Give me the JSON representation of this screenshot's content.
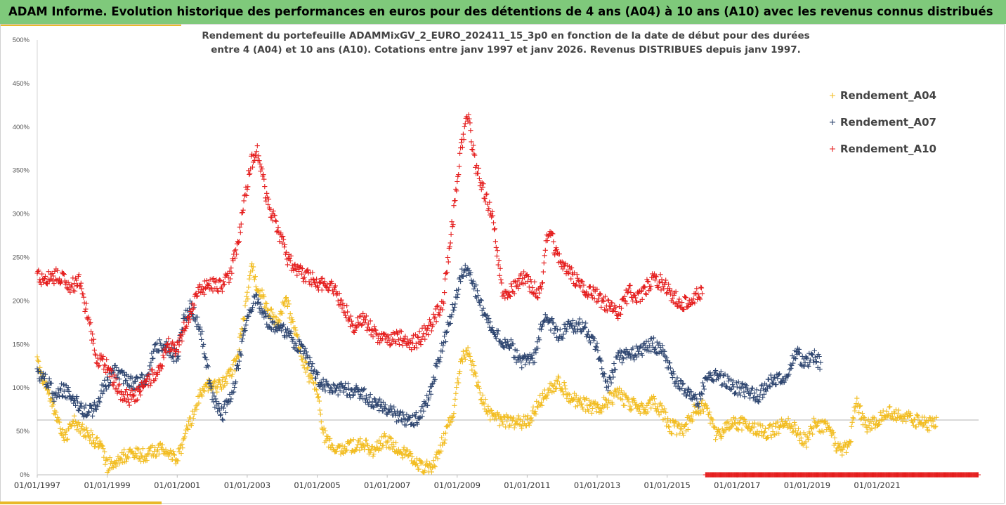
{
  "header": {
    "title": "ADAM Informe. Evolution historique des performances en euros pour des détentions de 4 ans (A04) à 10 ans (A10) avec les revenus connus distribués"
  },
  "colors": {
    "a04": "#f2bd22",
    "a07": "#2f4670",
    "a10": "#e51f1f",
    "refline": "#9a9a9a"
  },
  "chart_data": {
    "type": "scatter",
    "title": [
      "Rendement du portefeuille ADAMMixGV_2_EURO_202411_15_3p0 en fonction de la date de début pour des durées",
      "entre 4 (A04) et 10 ans (A10). Cotations entre janv 1997 et janv 2026. Revenus DISTRIBUES depuis janv 1997."
    ],
    "y_tick_labels": [
      "0%",
      "50%",
      "100%",
      "150%",
      "200%",
      "250%",
      "300%",
      "350%",
      "400%",
      "450%",
      "500%"
    ],
    "y_ticks": [
      0,
      50,
      100,
      150,
      200,
      250,
      300,
      350,
      400,
      450,
      500
    ],
    "ylim": [
      0,
      500
    ],
    "x_tick_labels": [
      "01/01/1997",
      "01/01/1999",
      "01/01/2001",
      "01/01/2003",
      "01/01/2005",
      "01/01/2007",
      "01/01/2009",
      "01/01/2011",
      "01/01/2013",
      "01/01/2015",
      "01/01/2017",
      "01/01/2019",
      "01/01/2021"
    ],
    "x_ticks": [
      1997,
      1999,
      2001,
      2003,
      2005,
      2007,
      2009,
      2011,
      2013,
      2015,
      2017,
      2019,
      2021
    ],
    "xlim": [
      1997,
      2023.9
    ],
    "reference_line": 63,
    "legend_position": "top-right",
    "series": [
      {
        "name": "Rendement_A04",
        "anchors": [
          [
            1997.0,
            132
          ],
          [
            1997.3,
            95
          ],
          [
            1997.6,
            60
          ],
          [
            1997.8,
            40
          ],
          [
            1998.0,
            62
          ],
          [
            1998.4,
            48
          ],
          [
            1998.8,
            35
          ],
          [
            1999.0,
            10
          ],
          [
            1999.3,
            18
          ],
          [
            1999.7,
            25
          ],
          [
            2000.0,
            22
          ],
          [
            2000.5,
            30
          ],
          [
            2000.8,
            25
          ],
          [
            2001.0,
            18
          ],
          [
            2001.2,
            42
          ],
          [
            2001.5,
            75
          ],
          [
            2001.8,
            105
          ],
          [
            2002.1,
            100
          ],
          [
            2002.4,
            110
          ],
          [
            2002.7,
            130
          ],
          [
            2003.0,
            205
          ],
          [
            2003.15,
            240
          ],
          [
            2003.3,
            215
          ],
          [
            2003.6,
            190
          ],
          [
            2003.9,
            170
          ],
          [
            2004.1,
            205
          ],
          [
            2004.4,
            160
          ],
          [
            2004.7,
            120
          ],
          [
            2005.0,
            95
          ],
          [
            2005.2,
            45
          ],
          [
            2005.5,
            25
          ],
          [
            2005.9,
            32
          ],
          [
            2006.3,
            35
          ],
          [
            2006.6,
            28
          ],
          [
            2006.9,
            40
          ],
          [
            2007.3,
            30
          ],
          [
            2007.7,
            20
          ],
          [
            2008.0,
            10
          ],
          [
            2008.3,
            8
          ],
          [
            2008.6,
            40
          ],
          [
            2008.9,
            75
          ],
          [
            2009.1,
            130
          ],
          [
            2009.3,
            145
          ],
          [
            2009.6,
            100
          ],
          [
            2009.8,
            80
          ],
          [
            2010.0,
            65
          ],
          [
            2010.5,
            62
          ],
          [
            2011.0,
            60
          ],
          [
            2011.3,
            80
          ],
          [
            2011.6,
            95
          ],
          [
            2011.9,
            108
          ],
          [
            2012.2,
            90
          ],
          [
            2012.6,
            82
          ],
          [
            2013.0,
            75
          ],
          [
            2013.3,
            85
          ],
          [
            2013.6,
            93
          ],
          [
            2013.9,
            82
          ],
          [
            2014.3,
            75
          ],
          [
            2014.6,
            85
          ],
          [
            2014.9,
            70
          ],
          [
            2015.1,
            55
          ],
          [
            2015.5,
            52
          ],
          [
            2015.8,
            75
          ],
          [
            2016.1,
            80
          ],
          [
            2016.4,
            45
          ],
          [
            2016.7,
            55
          ],
          [
            2017.0,
            60
          ],
          [
            2017.4,
            55
          ],
          [
            2017.8,
            48
          ],
          [
            2018.2,
            55
          ],
          [
            2018.5,
            60
          ],
          [
            2018.8,
            45
          ],
          [
            2019.0,
            38
          ],
          [
            2019.2,
            58
          ],
          [
            2019.6,
            55
          ],
          [
            2019.9,
            28
          ],
          [
            2020.2,
            32
          ],
          [
            2020.4,
            85
          ],
          [
            2020.7,
            55
          ],
          [
            2021.0,
            62
          ],
          [
            2021.3,
            72
          ],
          [
            2021.6,
            68
          ],
          [
            2021.9,
            65
          ],
          [
            2022.2,
            62
          ],
          [
            2022.5,
            58
          ],
          [
            2022.7,
            60
          ]
        ]
      },
      {
        "name": "Rendement_A07",
        "anchors": [
          [
            1997.0,
            118
          ],
          [
            1997.3,
            108
          ],
          [
            1997.5,
            88
          ],
          [
            1997.7,
            98
          ],
          [
            1998.0,
            92
          ],
          [
            1998.3,
            72
          ],
          [
            1998.6,
            75
          ],
          [
            1998.9,
            100
          ],
          [
            1999.2,
            120
          ],
          [
            1999.5,
            110
          ],
          [
            1999.8,
            105
          ],
          [
            2000.1,
            110
          ],
          [
            2000.4,
            150
          ],
          [
            2000.7,
            145
          ],
          [
            2001.0,
            135
          ],
          [
            2001.2,
            180
          ],
          [
            2001.4,
            195
          ],
          [
            2001.7,
            160
          ],
          [
            2002.0,
            90
          ],
          [
            2002.3,
            70
          ],
          [
            2002.6,
            100
          ],
          [
            2002.9,
            160
          ],
          [
            2003.2,
            205
          ],
          [
            2003.5,
            180
          ],
          [
            2003.8,
            170
          ],
          [
            2004.1,
            165
          ],
          [
            2004.4,
            150
          ],
          [
            2004.7,
            140
          ],
          [
            2005.0,
            110
          ],
          [
            2005.4,
            100
          ],
          [
            2005.8,
            98
          ],
          [
            2006.2,
            95
          ],
          [
            2006.6,
            85
          ],
          [
            2007.0,
            75
          ],
          [
            2007.4,
            65
          ],
          [
            2007.8,
            62
          ],
          [
            2008.1,
            80
          ],
          [
            2008.4,
            120
          ],
          [
            2008.7,
            165
          ],
          [
            2009.0,
            210
          ],
          [
            2009.2,
            240
          ],
          [
            2009.5,
            215
          ],
          [
            2009.8,
            180
          ],
          [
            2010.1,
            160
          ],
          [
            2010.5,
            150
          ],
          [
            2010.8,
            130
          ],
          [
            2011.2,
            135
          ],
          [
            2011.5,
            185
          ],
          [
            2011.9,
            160
          ],
          [
            2012.2,
            170
          ],
          [
            2012.6,
            172
          ],
          [
            2013.0,
            145
          ],
          [
            2013.3,
            100
          ],
          [
            2013.6,
            135
          ],
          [
            2013.9,
            138
          ],
          [
            2014.2,
            142
          ],
          [
            2014.6,
            150
          ],
          [
            2014.9,
            140
          ],
          [
            2015.2,
            110
          ],
          [
            2015.6,
            95
          ],
          [
            2015.9,
            85
          ],
          [
            2016.2,
            118
          ],
          [
            2016.6,
            110
          ],
          [
            2016.9,
            100
          ],
          [
            2017.2,
            98
          ],
          [
            2017.6,
            90
          ],
          [
            2018.0,
            110
          ],
          [
            2018.4,
            115
          ],
          [
            2018.7,
            140
          ],
          [
            2018.9,
            130
          ],
          [
            2019.2,
            135
          ],
          [
            2019.4,
            128
          ]
        ]
      },
      {
        "name": "Rendement_A10",
        "anchors": [
          [
            1997.0,
            228
          ],
          [
            1997.3,
            225
          ],
          [
            1997.6,
            230
          ],
          [
            1997.9,
            215
          ],
          [
            1998.2,
            222
          ],
          [
            1998.5,
            175
          ],
          [
            1998.7,
            135
          ],
          [
            1999.0,
            125
          ],
          [
            1999.3,
            98
          ],
          [
            1999.6,
            88
          ],
          [
            1999.9,
            95
          ],
          [
            2000.2,
            110
          ],
          [
            2000.5,
            120
          ],
          [
            2000.7,
            150
          ],
          [
            2001.0,
            145
          ],
          [
            2001.3,
            180
          ],
          [
            2001.6,
            210
          ],
          [
            2001.9,
            220
          ],
          [
            2002.2,
            215
          ],
          [
            2002.5,
            230
          ],
          [
            2002.8,
            280
          ],
          [
            2003.1,
            360
          ],
          [
            2003.3,
            370
          ],
          [
            2003.6,
            310
          ],
          [
            2003.9,
            280
          ],
          [
            2004.2,
            245
          ],
          [
            2004.5,
            235
          ],
          [
            2004.8,
            225
          ],
          [
            2005.1,
            220
          ],
          [
            2005.4,
            215
          ],
          [
            2005.7,
            200
          ],
          [
            2006.0,
            170
          ],
          [
            2006.3,
            180
          ],
          [
            2006.6,
            165
          ],
          [
            2006.9,
            155
          ],
          [
            2007.3,
            158
          ],
          [
            2007.7,
            150
          ],
          [
            2008.0,
            160
          ],
          [
            2008.3,
            175
          ],
          [
            2008.6,
            200
          ],
          [
            2008.9,
            300
          ],
          [
            2009.1,
            370
          ],
          [
            2009.3,
            415
          ],
          [
            2009.5,
            360
          ],
          [
            2009.8,
            320
          ],
          [
            2010.0,
            300
          ],
          [
            2010.3,
            210
          ],
          [
            2010.6,
            215
          ],
          [
            2010.9,
            225
          ],
          [
            2011.2,
            215
          ],
          [
            2011.4,
            210
          ],
          [
            2011.6,
            285
          ],
          [
            2011.8,
            260
          ],
          [
            2012.1,
            240
          ],
          [
            2012.4,
            225
          ],
          [
            2012.7,
            210
          ],
          [
            2013.0,
            205
          ],
          [
            2013.3,
            195
          ],
          [
            2013.6,
            185
          ],
          [
            2013.9,
            210
          ],
          [
            2014.2,
            205
          ],
          [
            2014.6,
            225
          ],
          [
            2014.9,
            220
          ],
          [
            2015.1,
            210
          ],
          [
            2015.4,
            195
          ],
          [
            2015.7,
            205
          ],
          [
            2016.0,
            210
          ]
        ],
        "baseline_from": 2016.1,
        "baseline_to": 2023.9,
        "baseline_value": 0
      }
    ]
  }
}
